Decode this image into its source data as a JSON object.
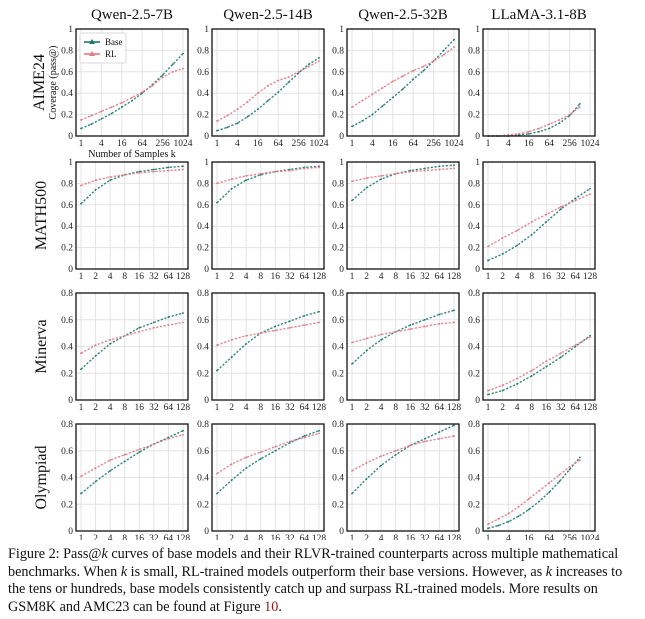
{
  "chart_data": {
    "type": "line",
    "title": "Pass@k curves of base models and RLVR-trained counterparts",
    "layout": "grid 4 rows x 4 columns",
    "columns": [
      "Qwen-2.5-7B",
      "Qwen-2.5-14B",
      "Qwen-2.5-32B",
      "LLaMA-3.1-8B"
    ],
    "rows": [
      "AIME24",
      "MATH500",
      "Minerva",
      "Olympiad"
    ],
    "ylabel": "Coverage (pass@k)",
    "xlabel": "Number of Samples k",
    "legend": {
      "position": "top-left",
      "entries": [
        {
          "name": "Base",
          "color": "#1f7a6e",
          "marker": "triangle"
        },
        {
          "name": "RL",
          "color": "#e07a83",
          "marker": "triangle"
        }
      ]
    },
    "grid": true,
    "x_scale": "log2",
    "row_axes": [
      {
        "benchmark": "AIME24",
        "xticks": [
          "1",
          "4",
          "16",
          "64",
          "256",
          "1024"
        ],
        "xlim_log2": [
          0,
          10
        ],
        "yticks": [
          "0",
          "0.2",
          "0.4",
          "0.6",
          "0.8",
          "1"
        ],
        "ylim": [
          0,
          1
        ]
      },
      {
        "benchmark": "MATH500",
        "xticks": [
          "1",
          "2",
          "4",
          "8",
          "16",
          "32",
          "64",
          "128"
        ],
        "xlim_log2": [
          0,
          7
        ],
        "yticks": [
          "0",
          "0.2",
          "0.4",
          "0.6",
          "0.8",
          "1"
        ],
        "ylim": [
          0,
          1
        ]
      },
      {
        "benchmark": "Minerva",
        "xticks": [
          "1",
          "2",
          "4",
          "8",
          "16",
          "32",
          "64",
          "128"
        ],
        "xlim_log2": [
          0,
          7
        ],
        "yticks": [
          "0",
          "0.2",
          "0.4",
          "0.6",
          "0.8"
        ],
        "ylim": [
          0,
          0.8
        ]
      },
      {
        "benchmark": "Olympiad",
        "xticks": [
          "1",
          "2",
          "4",
          "8",
          "16",
          "32",
          "64",
          "128"
        ],
        "xlim_log2": [
          0,
          7
        ],
        "yticks": [
          "0",
          "0.2",
          "0.4",
          "0.6",
          "0.8"
        ],
        "ylim": [
          0,
          0.8
        ]
      }
    ],
    "llama_overrides": {
      "Minerva": {
        "xticks": [
          "1",
          "2",
          "4",
          "8",
          "16",
          "32",
          "64",
          "128"
        ],
        "xlim_log2": [
          0,
          7
        ]
      },
      "Olympiad": {
        "xticks": [
          "1",
          "4",
          "16",
          "64",
          "256",
          "1024"
        ],
        "xlim_log2": [
          0,
          10
        ]
      }
    },
    "panels": [
      {
        "row": "AIME24",
        "model": "Qwen-2.5-7B",
        "show_legend": true,
        "show_ylabel": true,
        "show_xlabel": true,
        "series": [
          {
            "name": "Base",
            "log2k": [
              0,
              1,
              2,
              3,
              4,
              5,
              6,
              7,
              8,
              9,
              10
            ],
            "values": [
              0.07,
              0.11,
              0.16,
              0.21,
              0.27,
              0.33,
              0.4,
              0.48,
              0.57,
              0.67,
              0.77
            ]
          },
          {
            "name": "RL",
            "log2k": [
              0,
              1,
              2,
              3,
              4,
              5,
              6,
              7,
              8,
              9,
              10
            ],
            "values": [
              0.15,
              0.19,
              0.23,
              0.27,
              0.31,
              0.36,
              0.41,
              0.47,
              0.55,
              0.6,
              0.63
            ]
          }
        ]
      },
      {
        "row": "AIME24",
        "model": "Qwen-2.5-14B",
        "series": [
          {
            "name": "Base",
            "log2k": [
              0,
              1,
              2,
              3,
              4,
              5,
              6,
              7,
              8,
              9,
              10
            ],
            "values": [
              0.05,
              0.08,
              0.12,
              0.18,
              0.25,
              0.33,
              0.41,
              0.5,
              0.59,
              0.67,
              0.73
            ]
          },
          {
            "name": "RL",
            "log2k": [
              0,
              1,
              2,
              3,
              4,
              5,
              6,
              7,
              8,
              9,
              10
            ],
            "values": [
              0.14,
              0.19,
              0.25,
              0.32,
              0.4,
              0.47,
              0.52,
              0.55,
              0.6,
              0.65,
              0.7
            ]
          }
        ]
      },
      {
        "row": "AIME24",
        "model": "Qwen-2.5-32B",
        "series": [
          {
            "name": "Base",
            "log2k": [
              0,
              1,
              2,
              3,
              4,
              5,
              6,
              7,
              8,
              9,
              10
            ],
            "values": [
              0.09,
              0.14,
              0.2,
              0.28,
              0.36,
              0.44,
              0.53,
              0.61,
              0.7,
              0.8,
              0.9
            ]
          },
          {
            "name": "RL",
            "log2k": [
              0,
              1,
              2,
              3,
              4,
              5,
              6,
              7,
              8,
              9,
              10
            ],
            "values": [
              0.27,
              0.33,
              0.39,
              0.45,
              0.51,
              0.56,
              0.61,
              0.65,
              0.7,
              0.76,
              0.83
            ]
          }
        ]
      },
      {
        "row": "AIME24",
        "model": "LLaMA-3.1-8B",
        "series": [
          {
            "name": "Base",
            "log2k": [
              0,
              1,
              2,
              3,
              4,
              5,
              6,
              7,
              8,
              9
            ],
            "values": [
              0.0,
              0.0,
              0.0,
              0.01,
              0.02,
              0.04,
              0.07,
              0.12,
              0.19,
              0.3
            ]
          },
          {
            "name": "RL",
            "log2k": [
              0,
              1,
              2,
              3,
              4,
              5,
              6,
              7,
              8,
              9
            ],
            "values": [
              0.0,
              0.0,
              0.01,
              0.02,
              0.04,
              0.07,
              0.11,
              0.15,
              0.2,
              0.27
            ]
          }
        ]
      },
      {
        "row": "MATH500",
        "model": "Qwen-2.5-7B",
        "series": [
          {
            "name": "Base",
            "log2k": [
              0,
              1,
              2,
              3,
              4,
              5,
              6,
              7
            ],
            "values": [
              0.61,
              0.74,
              0.83,
              0.88,
              0.91,
              0.93,
              0.95,
              0.96
            ]
          },
          {
            "name": "RL",
            "log2k": [
              0,
              1,
              2,
              3,
              4,
              5,
              6,
              7
            ],
            "values": [
              0.78,
              0.83,
              0.86,
              0.88,
              0.9,
              0.91,
              0.92,
              0.93
            ]
          }
        ]
      },
      {
        "row": "MATH500",
        "model": "Qwen-2.5-14B",
        "series": [
          {
            "name": "Base",
            "log2k": [
              0,
              1,
              2,
              3,
              4,
              5,
              6,
              7
            ],
            "values": [
              0.62,
              0.75,
              0.83,
              0.88,
              0.91,
              0.93,
              0.95,
              0.96
            ]
          },
          {
            "name": "RL",
            "log2k": [
              0,
              1,
              2,
              3,
              4,
              5,
              6,
              7
            ],
            "values": [
              0.8,
              0.84,
              0.87,
              0.89,
              0.91,
              0.92,
              0.94,
              0.95
            ]
          }
        ]
      },
      {
        "row": "MATH500",
        "model": "Qwen-2.5-32B",
        "series": [
          {
            "name": "Base",
            "log2k": [
              0,
              1,
              2,
              3,
              4,
              5,
              6,
              7
            ],
            "values": [
              0.64,
              0.76,
              0.84,
              0.89,
              0.92,
              0.94,
              0.96,
              0.97
            ]
          },
          {
            "name": "RL",
            "log2k": [
              0,
              1,
              2,
              3,
              4,
              5,
              6,
              7
            ],
            "values": [
              0.82,
              0.85,
              0.87,
              0.89,
              0.91,
              0.92,
              0.93,
              0.94
            ]
          }
        ]
      },
      {
        "row": "MATH500",
        "model": "LLaMA-3.1-8B",
        "series": [
          {
            "name": "Base",
            "log2k": [
              0,
              1,
              2,
              3,
              4,
              5,
              6,
              7
            ],
            "values": [
              0.08,
              0.14,
              0.22,
              0.32,
              0.44,
              0.56,
              0.66,
              0.75
            ]
          },
          {
            "name": "RL",
            "log2k": [
              0,
              1,
              2,
              3,
              4,
              5,
              6,
              7
            ],
            "values": [
              0.21,
              0.29,
              0.36,
              0.44,
              0.51,
              0.58,
              0.64,
              0.7
            ]
          }
        ]
      },
      {
        "row": "Minerva",
        "model": "Qwen-2.5-7B",
        "series": [
          {
            "name": "Base",
            "log2k": [
              0,
              1,
              2,
              3,
              4,
              5,
              6,
              7
            ],
            "values": [
              0.23,
              0.33,
              0.42,
              0.48,
              0.54,
              0.58,
              0.62,
              0.65
            ]
          },
          {
            "name": "RL",
            "log2k": [
              0,
              1,
              2,
              3,
              4,
              5,
              6,
              7
            ],
            "values": [
              0.35,
              0.41,
              0.45,
              0.48,
              0.51,
              0.54,
              0.56,
              0.58
            ]
          }
        ]
      },
      {
        "row": "Minerva",
        "model": "Qwen-2.5-14B",
        "series": [
          {
            "name": "Base",
            "log2k": [
              0,
              1,
              2,
              3,
              4,
              5,
              6,
              7
            ],
            "values": [
              0.22,
              0.32,
              0.42,
              0.5,
              0.55,
              0.59,
              0.63,
              0.66
            ]
          },
          {
            "name": "RL",
            "log2k": [
              0,
              1,
              2,
              3,
              4,
              5,
              6,
              7
            ],
            "values": [
              0.41,
              0.45,
              0.48,
              0.5,
              0.52,
              0.54,
              0.56,
              0.58
            ]
          }
        ]
      },
      {
        "row": "Minerva",
        "model": "Qwen-2.5-32B",
        "series": [
          {
            "name": "Base",
            "log2k": [
              0,
              1,
              2,
              3,
              4,
              5,
              6,
              7
            ],
            "values": [
              0.27,
              0.37,
              0.45,
              0.51,
              0.56,
              0.6,
              0.64,
              0.67
            ]
          },
          {
            "name": "RL",
            "log2k": [
              0,
              1,
              2,
              3,
              4,
              5,
              6,
              7
            ],
            "values": [
              0.43,
              0.46,
              0.49,
              0.51,
              0.53,
              0.55,
              0.57,
              0.58
            ]
          }
        ]
      },
      {
        "row": "Minerva",
        "model": "LLaMA-3.1-8B",
        "series": [
          {
            "name": "Base",
            "log2k": [
              0,
              1,
              2,
              3,
              4,
              5,
              6,
              7
            ],
            "values": [
              0.04,
              0.07,
              0.12,
              0.18,
              0.25,
              0.32,
              0.4,
              0.48
            ]
          },
          {
            "name": "RL",
            "log2k": [
              0,
              1,
              2,
              3,
              4,
              5,
              6,
              7
            ],
            "values": [
              0.07,
              0.11,
              0.16,
              0.22,
              0.29,
              0.35,
              0.41,
              0.47
            ]
          }
        ]
      },
      {
        "row": "Olympiad",
        "model": "Qwen-2.5-7B",
        "series": [
          {
            "name": "Base",
            "log2k": [
              0,
              1,
              2,
              3,
              4,
              5,
              6,
              7
            ],
            "values": [
              0.28,
              0.37,
              0.45,
              0.52,
              0.59,
              0.65,
              0.7,
              0.75
            ]
          },
          {
            "name": "RL",
            "log2k": [
              0,
              1,
              2,
              3,
              4,
              5,
              6,
              7
            ],
            "values": [
              0.41,
              0.47,
              0.53,
              0.57,
              0.61,
              0.65,
              0.69,
              0.72
            ]
          }
        ]
      },
      {
        "row": "Olympiad",
        "model": "Qwen-2.5-14B",
        "series": [
          {
            "name": "Base",
            "log2k": [
              0,
              1,
              2,
              3,
              4,
              5,
              6,
              7
            ],
            "values": [
              0.28,
              0.38,
              0.47,
              0.54,
              0.6,
              0.66,
              0.71,
              0.75
            ]
          },
          {
            "name": "RL",
            "log2k": [
              0,
              1,
              2,
              3,
              4,
              5,
              6,
              7
            ],
            "values": [
              0.43,
              0.5,
              0.55,
              0.59,
              0.63,
              0.67,
              0.7,
              0.73
            ]
          }
        ]
      },
      {
        "row": "Olympiad",
        "model": "Qwen-2.5-32B",
        "series": [
          {
            "name": "Base",
            "log2k": [
              0,
              1,
              2,
              3,
              4,
              5,
              6,
              7
            ],
            "values": [
              0.28,
              0.39,
              0.49,
              0.57,
              0.64,
              0.69,
              0.74,
              0.79
            ]
          },
          {
            "name": "RL",
            "log2k": [
              0,
              1,
              2,
              3,
              4,
              5,
              6,
              7
            ],
            "values": [
              0.45,
              0.51,
              0.56,
              0.6,
              0.64,
              0.67,
              0.69,
              0.71
            ]
          }
        ]
      },
      {
        "row": "Olympiad",
        "model": "LLaMA-3.1-8B",
        "series": [
          {
            "name": "Base",
            "log2k": [
              0,
              1,
              2,
              3,
              4,
              5,
              6,
              7,
              8,
              9
            ],
            "values": [
              0.02,
              0.04,
              0.07,
              0.11,
              0.16,
              0.22,
              0.29,
              0.37,
              0.46,
              0.55
            ]
          },
          {
            "name": "RL",
            "log2k": [
              0,
              1,
              2,
              3,
              4,
              5,
              6,
              7,
              8,
              9
            ],
            "values": [
              0.05,
              0.09,
              0.13,
              0.18,
              0.24,
              0.3,
              0.36,
              0.42,
              0.48,
              0.53
            ]
          }
        ]
      }
    ]
  },
  "caption": {
    "label": "Figure 2:",
    "part1": " Pass@",
    "k1": "k",
    "part2": " curves of base models and their RLVR-trained counterparts across multiple mathematical benchmarks. When ",
    "k2": "k",
    "part3": " is small, RL-trained models outperform their base versions. However, as ",
    "k3": "k",
    "part4": " increases to the tens or hundreds, base models consistently catch up and surpass RL-trained models. More results on GSM8K and AMC23 can be found at Figure ",
    "ref": "10",
    "end": "."
  }
}
